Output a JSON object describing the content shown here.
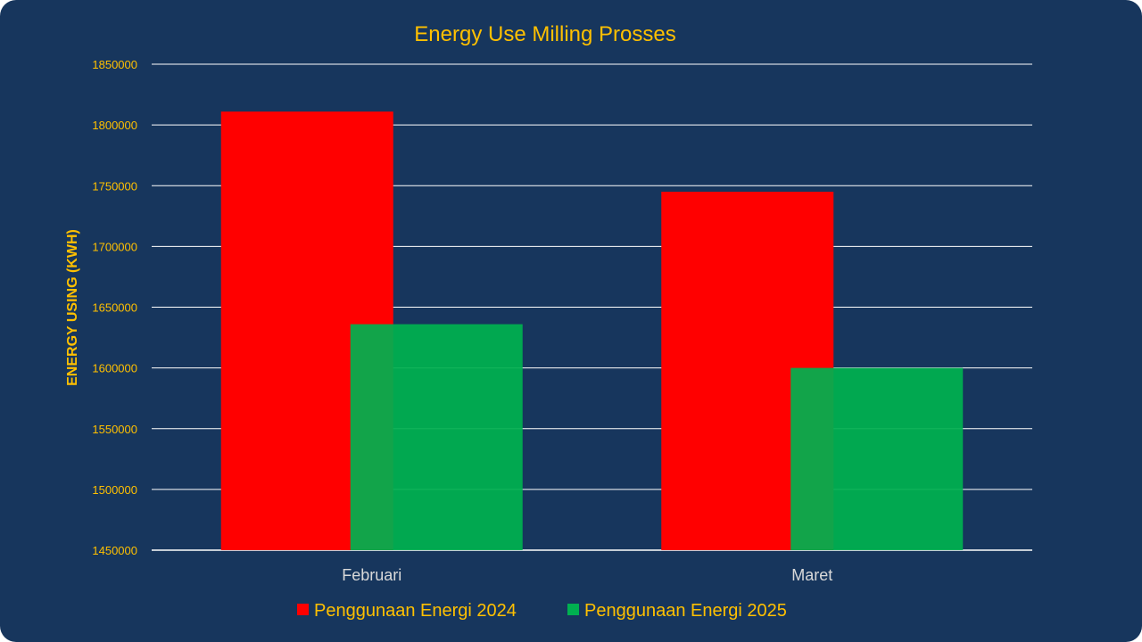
{
  "colors": {
    "background": "#17365d",
    "text": "#ffc000",
    "category_text": "#d9d9d9",
    "gridline": "#ffffff",
    "series_2024": "#ff0000",
    "series_2025": "#00b050"
  },
  "chart_data": {
    "type": "bar",
    "title": "Energy Use Milling Prosses",
    "xlabel": "",
    "ylabel": "ENERGY USING (KWH)",
    "categories": [
      "Februari",
      "Maret"
    ],
    "series": [
      {
        "name": "Penggunaan Energi 2024",
        "values": [
          1811000,
          1745000
        ]
      },
      {
        "name": "Penggunaan Energi 2025",
        "values": [
          1636000,
          1600000
        ]
      }
    ],
    "ylim": [
      1450000,
      1850000
    ],
    "yticks": [
      "1450000",
      "1500000",
      "1550000",
      "1600000",
      "1650000",
      "1700000",
      "1750000",
      "1800000",
      "1850000"
    ],
    "grid": true,
    "legend_position": "bottom",
    "series_overlap": true
  }
}
